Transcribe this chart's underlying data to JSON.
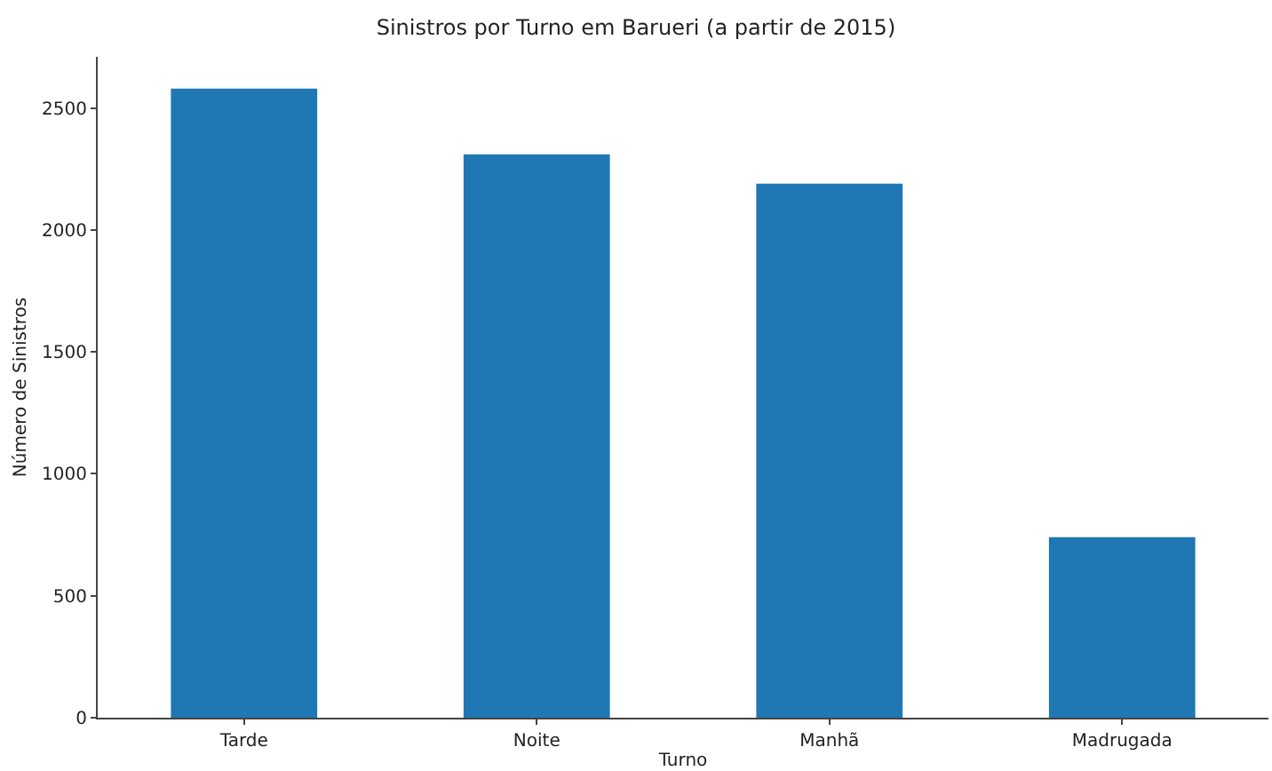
{
  "chart_data": {
    "type": "bar",
    "title": "Sinistros por Turno em Barueri (a partir de 2015)",
    "xlabel": "Turno",
    "ylabel": "Número de Sinistros",
    "categories": [
      "Tarde",
      "Noite",
      "Manhã",
      "Madrugada"
    ],
    "values": [
      2580,
      2310,
      2190,
      740
    ],
    "color": "#1f77b4",
    "ylim": [
      0,
      2710
    ],
    "yticks": [
      0,
      500,
      1000,
      1500,
      2000,
      2500
    ]
  }
}
